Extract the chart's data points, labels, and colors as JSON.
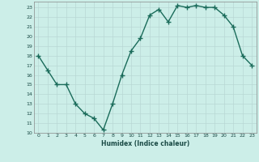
{
  "x": [
    0,
    1,
    2,
    3,
    4,
    5,
    6,
    7,
    8,
    9,
    10,
    11,
    12,
    13,
    14,
    15,
    16,
    17,
    18,
    19,
    20,
    21,
    22,
    23
  ],
  "y": [
    18.0,
    16.5,
    15.0,
    15.0,
    13.0,
    12.0,
    11.5,
    10.3,
    13.0,
    16.0,
    18.5,
    19.8,
    22.2,
    22.8,
    21.5,
    23.2,
    23.0,
    23.2,
    23.0,
    23.0,
    22.2,
    21.0,
    18.0,
    17.0
  ],
  "title": "",
  "xlabel": "Humidex (Indice chaleur)",
  "ylabel": "",
  "xlim": [
    -0.5,
    23.5
  ],
  "ylim": [
    10,
    23.6
  ],
  "yticks": [
    10,
    11,
    12,
    13,
    14,
    15,
    16,
    17,
    18,
    19,
    20,
    21,
    22,
    23
  ],
  "xticks": [
    0,
    1,
    2,
    3,
    4,
    5,
    6,
    7,
    8,
    9,
    10,
    11,
    12,
    13,
    14,
    15,
    16,
    17,
    18,
    19,
    20,
    21,
    22,
    23
  ],
  "line_color": "#1a6b5a",
  "marker_color": "#1a6b5a",
  "bg_color": "#cceee8",
  "grid_color": "#b8d8d4",
  "axes_color": "#888888",
  "label_color": "#1a4a45",
  "tick_label_color": "#1a4a45",
  "line_width": 1.0,
  "marker_size": 4
}
